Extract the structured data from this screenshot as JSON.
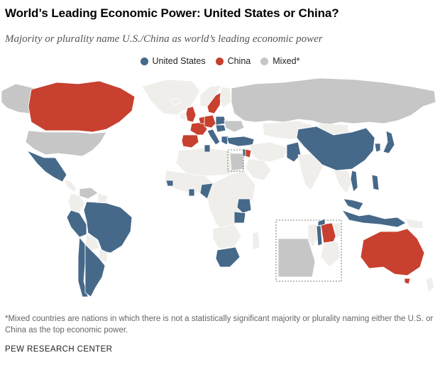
{
  "title": "World’s Leading Economic Power: United States or China?",
  "subtitle": "Majority or plurality name U.S./China as world’s leading economic power",
  "legend": [
    {
      "label": "United States",
      "color": "#46698a"
    },
    {
      "label": "China",
      "color": "#c8402f"
    },
    {
      "label": "Mixed*",
      "color": "#c6c6c6"
    }
  ],
  "colors": {
    "us": "#46698a",
    "china": "#c8402f",
    "mixed": "#c6c6c6",
    "none": "#efeeea",
    "border": "#ffffff"
  },
  "note": "*Mixed countries are nations in which there is not a statistically significant majority or plurality naming either the U.S. or China as the top economic power.",
  "source": "PEW RESEARCH CENTER"
}
